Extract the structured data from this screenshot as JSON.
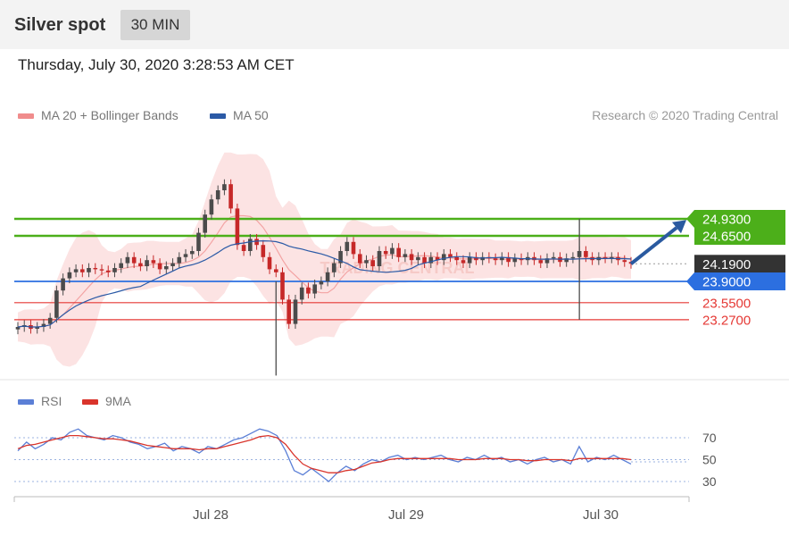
{
  "header": {
    "title": "Silver spot",
    "timeframe": "30 MIN"
  },
  "timestamp": "Thursday, July 30, 2020 3:28:53 AM CET",
  "legend": {
    "bollinger": {
      "label": "MA 20 + Bollinger Bands",
      "color": "#f08c8c"
    },
    "ma50": {
      "label": "MA 50",
      "color": "#2b5aa6"
    },
    "credit": "Research © 2020 Trading Central"
  },
  "watermark": "TRADING CENTRAL",
  "rsi_legend": {
    "rsi": {
      "label": "RSI",
      "color": "#5b7fd6"
    },
    "ma9": {
      "label": "9MA",
      "color": "#d9342b"
    }
  },
  "price_levels": [
    {
      "value": "24.9300",
      "color": "#4caf1a",
      "kind": "resistance"
    },
    {
      "value": "24.6500",
      "color": "#4caf1a",
      "kind": "resistance"
    },
    {
      "value": "24.1900",
      "color": "#333333",
      "kind": "last"
    },
    {
      "value": "23.9000",
      "color": "#2c6fe0",
      "kind": "pivot"
    },
    {
      "value": "23.5500",
      "color": "#e53935",
      "kind": "support"
    },
    {
      "value": "23.2700",
      "color": "#e53935",
      "kind": "support"
    }
  ],
  "chart_data": [
    {
      "type": "candlestick",
      "title": "Silver spot",
      "timeframe": "30 MIN",
      "x_labels": [
        "Jul 28",
        "Jul 29",
        "Jul 30"
      ],
      "ylim": [
        22.2,
        25.6
      ],
      "series": [
        {
          "name": "MA 20 + Bollinger Bands"
        },
        {
          "name": "MA 50"
        }
      ],
      "close": [
        23.15,
        23.18,
        23.12,
        23.15,
        23.2,
        23.3,
        23.75,
        23.95,
        24.05,
        24.1,
        24.05,
        24.12,
        24.1,
        24.08,
        24.05,
        24.12,
        24.2,
        24.3,
        24.2,
        24.15,
        24.25,
        24.2,
        24.1,
        24.15,
        24.2,
        24.3,
        24.35,
        24.4,
        24.7,
        25.0,
        25.25,
        25.4,
        25.5,
        25.1,
        24.5,
        24.4,
        24.6,
        24.5,
        24.3,
        24.1,
        24.05,
        23.6,
        23.2,
        23.6,
        23.8,
        23.7,
        23.85,
        23.9,
        24.05,
        24.2,
        24.4,
        24.55,
        24.35,
        24.2,
        24.25,
        24.15,
        24.4,
        24.35,
        24.45,
        24.3,
        24.35,
        24.25,
        24.3,
        24.2,
        24.3,
        24.25,
        24.35,
        24.3,
        24.25,
        24.2,
        24.3,
        24.25,
        24.3,
        24.28,
        24.25,
        24.3,
        24.22,
        24.28,
        24.25,
        24.3,
        24.25,
        24.2,
        24.28,
        24.3,
        24.22,
        24.28,
        24.3,
        24.4,
        24.3,
        24.25,
        24.3,
        24.28,
        24.3,
        24.25,
        24.22,
        24.19
      ],
      "levels": [
        24.93,
        24.65,
        24.19,
        23.9,
        23.55,
        23.27
      ],
      "projection": {
        "from": 24.19,
        "to": 24.93
      }
    },
    {
      "type": "line",
      "title": "RSI",
      "x_labels": [
        "Jul 28",
        "Jul 29",
        "Jul 30"
      ],
      "yticks": [
        30,
        50,
        70
      ],
      "ylim": [
        20,
        85
      ],
      "series": [
        {
          "name": "RSI",
          "values": [
            58,
            66,
            60,
            64,
            70,
            68,
            75,
            78,
            72,
            70,
            68,
            72,
            70,
            66,
            64,
            60,
            62,
            65,
            58,
            62,
            60,
            56,
            62,
            60,
            64,
            68,
            70,
            74,
            78,
            76,
            72,
            58,
            40,
            36,
            42,
            36,
            30,
            38,
            44,
            40,
            46,
            50,
            48,
            52,
            54,
            50,
            52,
            50,
            52,
            54,
            50,
            48,
            52,
            50,
            54,
            50,
            52,
            48,
            50,
            46,
            50,
            52,
            48,
            50,
            46,
            62,
            48,
            52,
            50,
            54,
            50,
            46
          ]
        },
        {
          "name": "9MA",
          "values": [
            60,
            63,
            64,
            66,
            68,
            70,
            72,
            72,
            71,
            70,
            69,
            69,
            68,
            67,
            65,
            63,
            62,
            61,
            60,
            60,
            60,
            59,
            60,
            60,
            62,
            64,
            66,
            68,
            71,
            72,
            70,
            64,
            54,
            46,
            42,
            40,
            38,
            38,
            40,
            41,
            44,
            47,
            48,
            50,
            51,
            51,
            51,
            51,
            51,
            51,
            51,
            50,
            50,
            50,
            51,
            51,
            51,
            50,
            50,
            49,
            49,
            50,
            50,
            50,
            49,
            51,
            51,
            51,
            51,
            51,
            51,
            50
          ]
        }
      ]
    }
  ]
}
